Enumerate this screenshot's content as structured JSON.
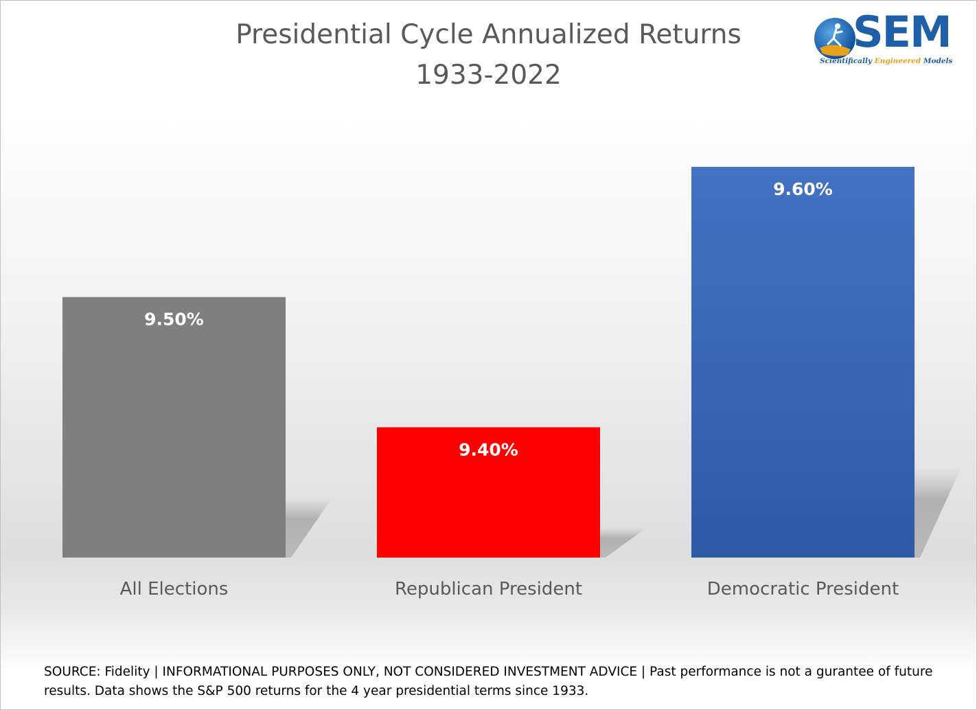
{
  "chart_data": {
    "type": "bar",
    "title": "Presidential Cycle Annualized Returns",
    "subtitle": "1933-2022",
    "categories": [
      "All Elections",
      "Republican President",
      "Democratic President"
    ],
    "values": [
      9.5,
      9.4,
      9.6
    ],
    "value_labels": [
      "9.50%",
      "9.40%",
      "9.60%"
    ],
    "colors": [
      "#7f7f7f",
      "#ff0000",
      "#4472c4"
    ],
    "ylim": [
      9.3,
      9.62
    ],
    "xlabel": "",
    "ylabel": "",
    "grid": false,
    "legend": "none"
  },
  "logo": {
    "name": "SEM",
    "tagline_parts": [
      "Scientifically ",
      "Engineered",
      " Models"
    ]
  },
  "source_note": "SOURCE: Fidelity | INFORMATIONAL PURPOSES ONLY, NOT CONSIDERED INVESTMENT ADVICE | Past performance is not a gurantee of future results. Data shows the S&P 500 returns for the 4 year presidential terms since 1933."
}
